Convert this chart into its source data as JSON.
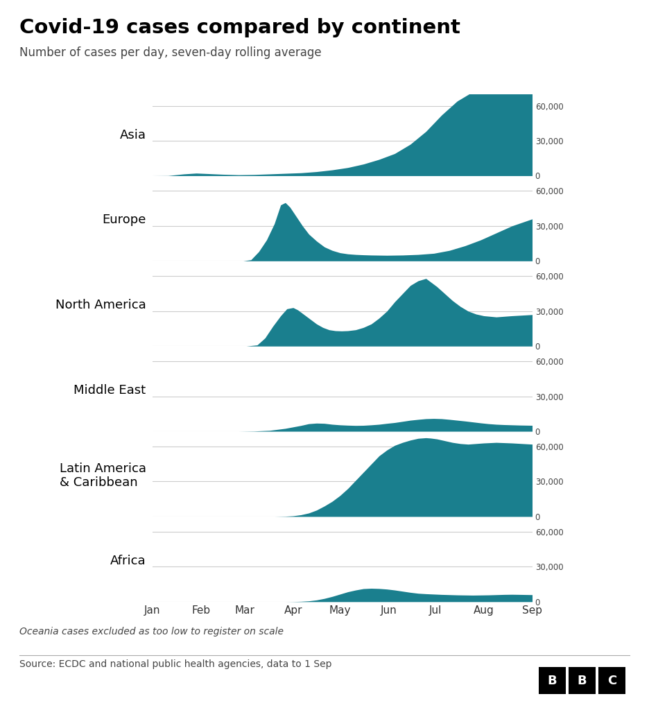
{
  "title": "Covid-19 cases compared by continent",
  "subtitle": "Number of cases per day, seven-day rolling average",
  "footnote": "Oceania cases excluded as too low to register on scale",
  "source": "Source: ECDC and national public health agencies, data to 1 Sep",
  "fill_color": "#1a7f8e",
  "background_color": "#ffffff",
  "label_color": "#000000",
  "grid_color": "#cccccc",
  "continents": [
    "Asia",
    "Europe",
    "North America",
    "Middle East",
    "Latin America\n& Caribbean",
    "Africa"
  ],
  "ylim_max": 70000,
  "yticks": [
    0,
    30000,
    60000
  ],
  "ytick_labels": [
    "0",
    "30,000",
    "60,000"
  ],
  "months": [
    "Jan",
    "Feb",
    "Mar",
    "Apr",
    "May",
    "Jun",
    "Jul",
    "Aug",
    "Sep"
  ],
  "month_positions": [
    0,
    31,
    59,
    90,
    120,
    151,
    181,
    212,
    243
  ],
  "n_days": 244
}
